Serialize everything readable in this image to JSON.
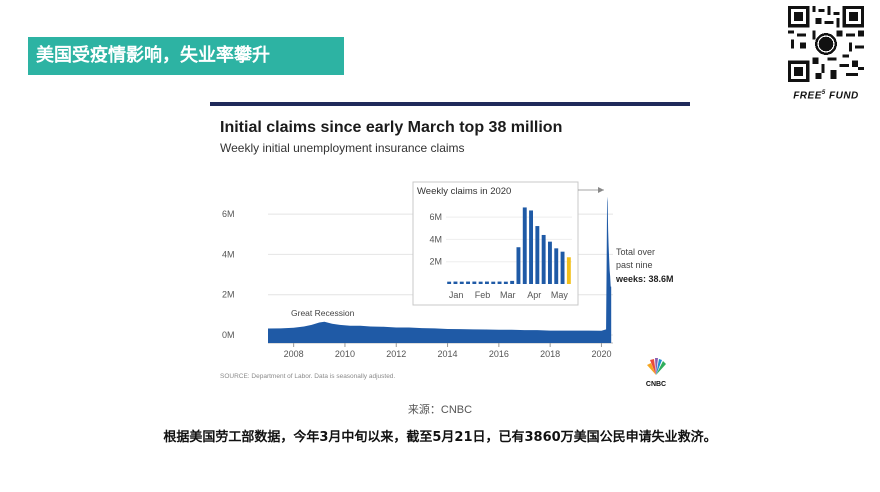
{
  "slide": {
    "title": "美国受疫情影响，失业率攀升",
    "brand_text": "FREE",
    "brand_sup": "5",
    "brand_text2": "FUND",
    "caption": "来源：CNBC",
    "summary": "根据美国劳工部数据，今年3月中旬以来，截至5月21日，已有3860万美国公民申请失业救济。",
    "icons": [
      "qr-code-icon",
      "cnbc-peacock-icon"
    ]
  },
  "chart_data": [
    {
      "type": "area",
      "title": "Initial claims since early March top 38 million",
      "subtitle": "Weekly initial unemployment insurance claims",
      "source": "SOURCE: Department of Labor. Data is seasonally adjusted.",
      "x_ticks": [
        "2008",
        "2010",
        "2012",
        "2014",
        "2016",
        "2018",
        "2020"
      ],
      "y_ticks": [
        "0M",
        "2M",
        "4M",
        "6M"
      ],
      "ylim": [
        0,
        7
      ],
      "xlim": [
        2007.0,
        2020.45
      ],
      "color": "#1f5aa6",
      "series": [
        {
          "x": [
            2007.0,
            2007.5,
            2008.0,
            2008.4,
            2008.7,
            2009.0,
            2009.2,
            2009.5,
            2009.8,
            2010.2,
            2010.6,
            2011.0,
            2011.5,
            2012.0,
            2012.5,
            2013.0,
            2013.5,
            2014.0,
            2014.5,
            2015.0,
            2015.5,
            2016.0,
            2016.5,
            2017.0,
            2017.5,
            2018.0,
            2018.5,
            2019.0,
            2019.5,
            2020.0,
            2020.18,
            2020.2,
            2020.22,
            2020.24,
            2020.26,
            2020.28,
            2020.3,
            2020.32,
            2020.34,
            2020.36,
            2020.38
          ],
          "values": [
            0.32,
            0.33,
            0.36,
            0.42,
            0.5,
            0.62,
            0.66,
            0.56,
            0.5,
            0.46,
            0.46,
            0.42,
            0.41,
            0.37,
            0.37,
            0.34,
            0.33,
            0.3,
            0.29,
            0.28,
            0.27,
            0.26,
            0.26,
            0.24,
            0.24,
            0.22,
            0.22,
            0.22,
            0.22,
            0.21,
            0.28,
            3.3,
            6.87,
            6.6,
            5.2,
            4.4,
            3.8,
            3.2,
            2.9,
            2.4,
            2.4
          ]
        }
      ],
      "annotations": [
        "Great Recession",
        "Total over",
        "past nine",
        "weeks: 38.6M"
      ]
    },
    {
      "type": "bar",
      "title": "Weekly claims in 2020",
      "x_ticks": [
        "Jan",
        "Feb",
        "Mar",
        "Apr",
        "May"
      ],
      "y_ticks": [
        "2M",
        "4M",
        "6M"
      ],
      "ylim": [
        0,
        7
      ],
      "values": [
        0.21,
        0.22,
        0.21,
        0.22,
        0.22,
        0.21,
        0.22,
        0.21,
        0.22,
        0.21,
        0.28,
        3.3,
        6.87,
        6.6,
        5.2,
        4.4,
        3.8,
        3.2,
        2.9,
        2.4
      ],
      "colors": {
        "normal": "#1f5aa6",
        "highlight": "#f2bf1a"
      },
      "highlight_index": 19
    }
  ]
}
